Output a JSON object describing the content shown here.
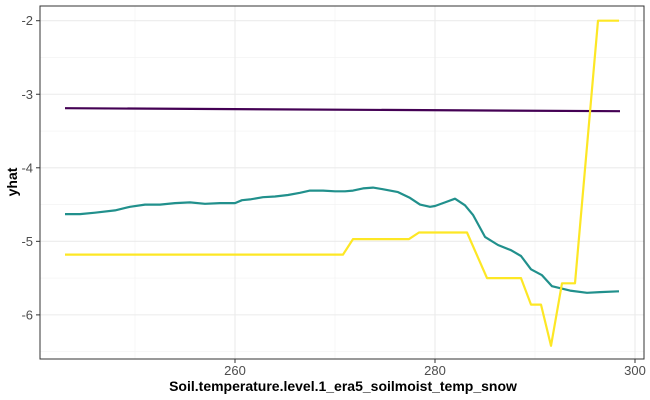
{
  "chart_data": {
    "type": "line",
    "title": "",
    "xlabel": "Soil.temperature.level.1_era5_soilmoist_temp_snow",
    "ylabel": "yhat",
    "xlim": [
      240.5,
      300.9
    ],
    "ylim": [
      -6.6,
      -1.8
    ],
    "x_ticks": [
      260,
      280,
      300
    ],
    "y_ticks": [
      -6,
      -5,
      -4,
      -3,
      -2
    ],
    "grid": true,
    "legend": "none",
    "series": [
      {
        "color": "#440154",
        "x": [
          243.0,
          298.5
        ],
        "y": [
          -3.19,
          -3.23
        ]
      },
      {
        "color": "#21908C",
        "x": [
          243.0,
          244.5,
          246.0,
          248.0,
          249.5,
          251.0,
          252.5,
          254.0,
          255.5,
          257.0,
          258.5,
          260.0,
          260.7,
          261.5,
          262.8,
          264.0,
          265.3,
          266.5,
          267.5,
          268.8,
          270.0,
          271.0,
          271.8,
          272.8,
          273.8,
          274.7,
          275.5,
          276.3,
          277.5,
          278.5,
          279.5,
          280.0,
          281.0,
          282.0,
          283.0,
          283.8,
          285.0,
          286.3,
          287.6,
          288.6,
          289.6,
          290.7,
          291.7,
          293.5,
          295.2,
          296.5,
          298.4
        ],
        "y": [
          -4.63,
          -4.63,
          -4.61,
          -4.58,
          -4.53,
          -4.5,
          -4.5,
          -4.48,
          -4.47,
          -4.49,
          -4.48,
          -4.48,
          -4.44,
          -4.43,
          -4.4,
          -4.39,
          -4.37,
          -4.34,
          -4.31,
          -4.31,
          -4.32,
          -4.32,
          -4.31,
          -4.28,
          -4.27,
          -4.29,
          -4.31,
          -4.33,
          -4.41,
          -4.5,
          -4.53,
          -4.52,
          -4.47,
          -4.42,
          -4.51,
          -4.64,
          -4.94,
          -5.05,
          -5.12,
          -5.2,
          -5.38,
          -5.46,
          -5.61,
          -5.67,
          -5.7,
          -5.69,
          -5.68
        ]
      },
      {
        "color": "#FDE725",
        "x": [
          243.0,
          270.8,
          271.8,
          277.4,
          278.4,
          283.2,
          285.2,
          288.6,
          289.6,
          290.6,
          291.6,
          292.7,
          293.7,
          294.0,
          296.3,
          298.4
        ],
        "y": [
          -5.18,
          -5.18,
          -4.97,
          -4.97,
          -4.88,
          -4.88,
          -5.5,
          -5.5,
          -5.86,
          -5.86,
          -6.42,
          -5.57,
          -5.57,
          -5.57,
          -2.0,
          -2.0
        ]
      }
    ]
  }
}
